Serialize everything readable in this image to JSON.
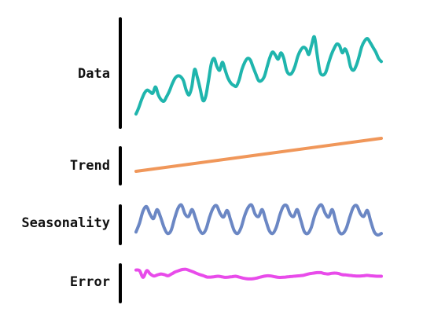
{
  "chart_data": {
    "type": "line",
    "title": "",
    "panels": [
      {
        "label": "Data",
        "color": "#1fb5ad",
        "range": [
          0,
          1
        ],
        "values": [
          0.0,
          0.08,
          0.18,
          0.26,
          0.3,
          0.28,
          0.26,
          0.34,
          0.24,
          0.18,
          0.16,
          0.22,
          0.29,
          0.38,
          0.45,
          0.48,
          0.47,
          0.42,
          0.3,
          0.24,
          0.34,
          0.56,
          0.46,
          0.32,
          0.17,
          0.22,
          0.42,
          0.63,
          0.7,
          0.6,
          0.55,
          0.65,
          0.55,
          0.45,
          0.39,
          0.36,
          0.35,
          0.43,
          0.56,
          0.65,
          0.7,
          0.68,
          0.59,
          0.5,
          0.42,
          0.42,
          0.47,
          0.59,
          0.71,
          0.78,
          0.74,
          0.69,
          0.77,
          0.7,
          0.55,
          0.5,
          0.52,
          0.6,
          0.72,
          0.8,
          0.84,
          0.82,
          0.75,
          0.87,
          0.97,
          0.74,
          0.53,
          0.49,
          0.52,
          0.63,
          0.74,
          0.82,
          0.88,
          0.86,
          0.77,
          0.82,
          0.74,
          0.59,
          0.55,
          0.61,
          0.72,
          0.85,
          0.92,
          0.95,
          0.9,
          0.84,
          0.78,
          0.7,
          0.66
        ]
      },
      {
        "label": "Trend",
        "color": "#f0975a",
        "range": [
          0,
          1
        ],
        "values": [
          0,
          1
        ]
      },
      {
        "label": "Seasonality",
        "color": "#6b87c4",
        "range": [
          0,
          1
        ],
        "values": [
          0.1,
          0.4,
          0.8,
          0.95,
          0.7,
          0.55,
          0.85,
          0.6,
          0.25,
          0.05,
          0.15,
          0.55,
          0.9,
          1.0,
          0.7,
          0.62,
          0.85,
          0.55,
          0.2,
          0.05,
          0.2,
          0.6,
          0.9,
          0.98,
          0.72,
          0.6,
          0.82,
          0.5,
          0.15,
          0.05,
          0.25,
          0.65,
          0.92,
          1.0,
          0.7,
          0.62,
          0.85,
          0.5,
          0.15,
          0.05,
          0.25,
          0.65,
          0.95,
          0.98,
          0.7,
          0.62,
          0.85,
          0.5,
          0.12,
          0.05,
          0.25,
          0.65,
          0.92,
          1.0,
          0.72,
          0.6,
          0.85,
          0.45,
          0.1,
          0.05,
          0.22,
          0.6,
          0.92,
          0.98,
          0.72,
          0.62,
          0.82,
          0.45,
          0.1,
          0.0,
          0.05
        ]
      },
      {
        "label": "Error",
        "color": "#e84bea",
        "range": [
          0,
          1
        ],
        "values": [
          0.85,
          0.8,
          0.3,
          0.8,
          0.55,
          0.4,
          0.48,
          0.55,
          0.5,
          0.42,
          0.55,
          0.7,
          0.8,
          0.88,
          0.9,
          0.82,
          0.72,
          0.6,
          0.5,
          0.42,
          0.32,
          0.32,
          0.35,
          0.38,
          0.35,
          0.3,
          0.32,
          0.35,
          0.38,
          0.32,
          0.25,
          0.2,
          0.18,
          0.2,
          0.25,
          0.32,
          0.38,
          0.42,
          0.4,
          0.35,
          0.3,
          0.3,
          0.32,
          0.35,
          0.37,
          0.4,
          0.42,
          0.45,
          0.52,
          0.58,
          0.62,
          0.65,
          0.65,
          0.58,
          0.55,
          0.6,
          0.62,
          0.58,
          0.5,
          0.48,
          0.45,
          0.42,
          0.4,
          0.4,
          0.42,
          0.45,
          0.42,
          0.4,
          0.38,
          0.38
        ]
      }
    ]
  }
}
